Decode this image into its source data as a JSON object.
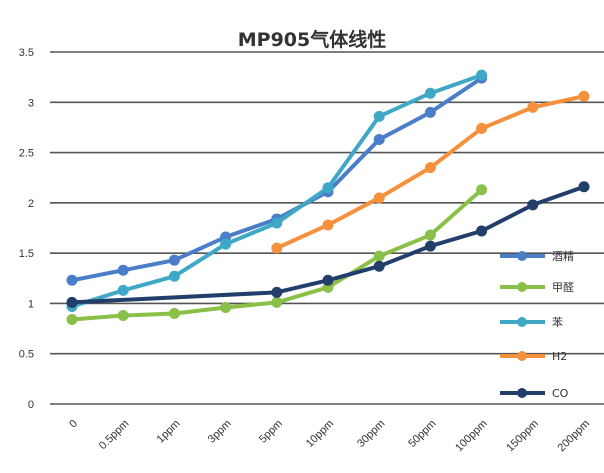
{
  "chart_data": {
    "type": "line",
    "title": "MP905气体线性",
    "xlabel": "",
    "ylabel": "",
    "categories": [
      "0",
      "0.5ppm",
      "1ppm",
      "3ppm",
      "5ppm",
      "10ppm",
      "30ppm",
      "50ppm",
      "100ppm",
      "150ppm",
      "200ppm"
    ],
    "ylim": [
      0,
      3.5
    ],
    "yticks": [
      "0",
      "0.5",
      "1",
      "1.5",
      "2",
      "2.5",
      "3",
      "3.5"
    ],
    "grid": true,
    "legend_position": "right",
    "series": [
      {
        "name": "酒精",
        "color": "#4a7ec9",
        "values": [
          1.23,
          1.33,
          1.43,
          1.66,
          1.84,
          2.11,
          2.63,
          2.9,
          3.24,
          null,
          null
        ]
      },
      {
        "name": "甲醛",
        "color": "#8bc048",
        "values": [
          0.84,
          0.88,
          0.9,
          0.96,
          1.01,
          1.16,
          1.47,
          1.68,
          2.13,
          null,
          null
        ]
      },
      {
        "name": "苯",
        "color": "#3fa8c6",
        "values": [
          0.97,
          1.13,
          1.27,
          1.59,
          1.8,
          2.15,
          2.86,
          3.09,
          3.27,
          null,
          null
        ]
      },
      {
        "name": "H2",
        "color": "#f5913c",
        "values": [
          null,
          null,
          null,
          null,
          1.55,
          1.78,
          2.05,
          2.35,
          2.74,
          2.95,
          3.06
        ]
      },
      {
        "name": "CO",
        "color": "#223e6b",
        "values": [
          1.01,
          null,
          null,
          null,
          1.11,
          1.23,
          1.37,
          1.57,
          1.72,
          1.98,
          2.16
        ]
      }
    ]
  }
}
